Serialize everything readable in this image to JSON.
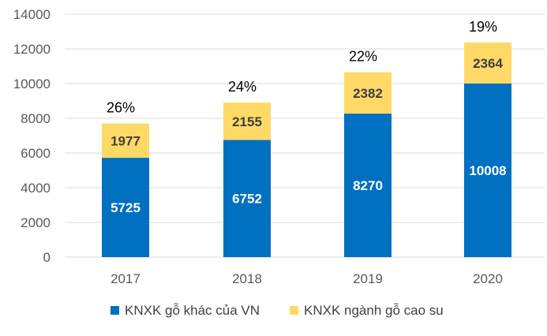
{
  "chart_data": {
    "type": "bar",
    "stacked": true,
    "categories": [
      "2017",
      "2018",
      "2019",
      "2020"
    ],
    "series": [
      {
        "name": "KNXK gỗ khác của VN",
        "values": [
          5725,
          6752,
          8270,
          10008
        ],
        "color": "#0070C0",
        "label_color": "#FFFFFF"
      },
      {
        "name": "KNXK ngành gỗ cao su",
        "values": [
          1977,
          2155,
          2382,
          2364
        ],
        "color": "#FFD966",
        "label_color": "#404040"
      }
    ],
    "annotations": [
      "26%",
      "24%",
      "22%",
      "19%"
    ],
    "ylim": [
      0,
      14000
    ],
    "yticks": [
      "0",
      "2000",
      "4000",
      "6000",
      "8000",
      "10000",
      "12000",
      "14000"
    ],
    "grid": true,
    "legend": "bottom",
    "gridline_color": "#D9D9D9"
  }
}
